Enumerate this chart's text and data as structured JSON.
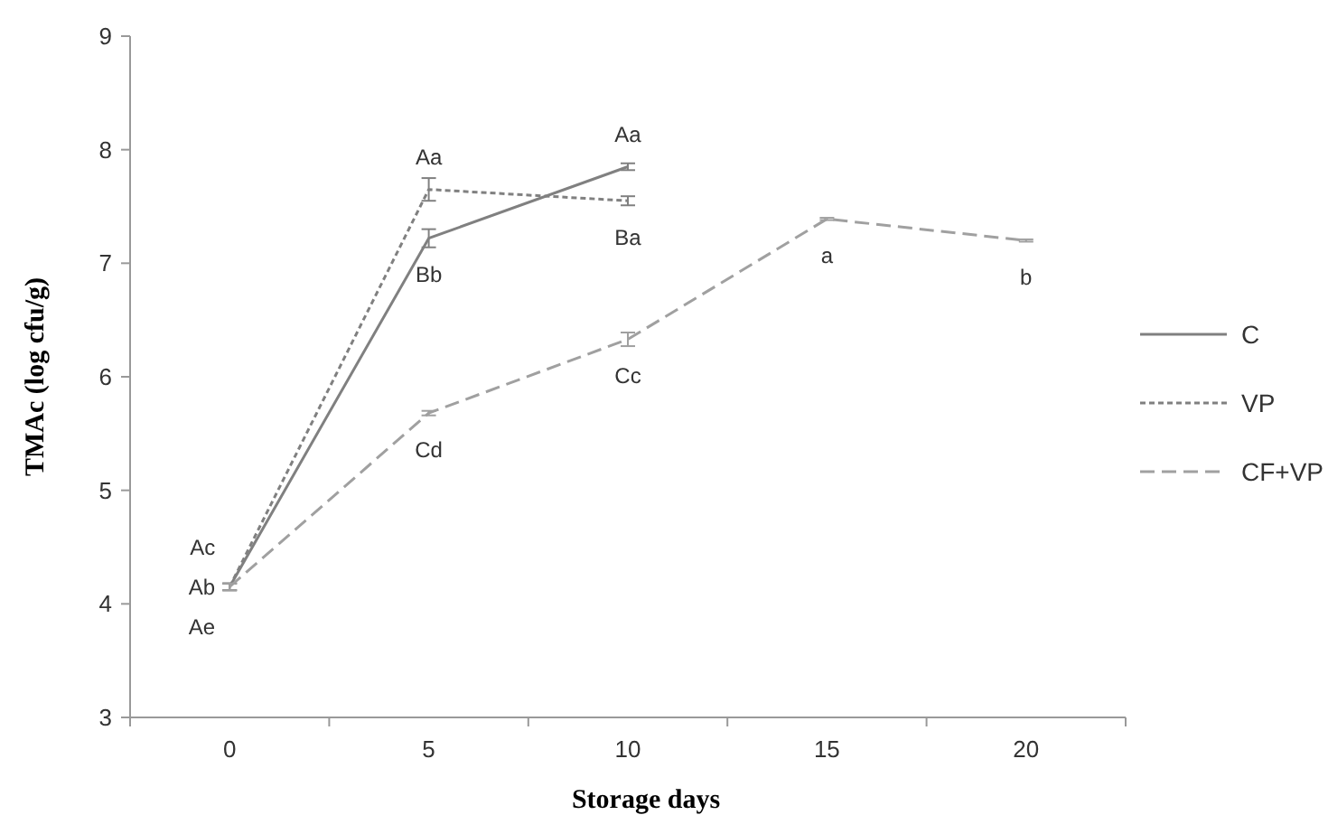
{
  "chart_data": {
    "type": "line",
    "xlabel": "Storage days",
    "ylabel": "TMAc (log cfu/g)",
    "categories": [
      "0",
      "5",
      "10",
      "15",
      "20"
    ],
    "ylim": [
      3,
      9
    ],
    "yticks": [
      3,
      4,
      5,
      6,
      7,
      8,
      9
    ],
    "grid": false,
    "legend": "right",
    "marker": "none",
    "series": [
      {
        "name": "C",
        "color": "#808080",
        "line_style": "solid",
        "values": [
          4.15,
          7.22,
          7.85,
          null,
          null
        ],
        "errors": [
          0.03,
          0.08,
          0.03,
          null,
          null
        ],
        "value_labels": [
          "Ab",
          "Bb",
          "Aa",
          null,
          null
        ]
      },
      {
        "name": "VP",
        "color": "#808080",
        "line_style": "dotted",
        "values": [
          4.15,
          7.65,
          7.55,
          null,
          null
        ],
        "errors": [
          0.03,
          0.1,
          0.04,
          null,
          null
        ],
        "value_labels": [
          "Ac",
          "Aa",
          "Ba",
          null,
          null
        ]
      },
      {
        "name": "CF+VP",
        "color": "#a0a0a0",
        "line_style": "dashed",
        "values": [
          4.15,
          5.68,
          6.33,
          7.39,
          7.2
        ],
        "errors": [
          0.03,
          0.02,
          0.06,
          0.01,
          0.01
        ],
        "value_labels": [
          "Ae",
          "Cd",
          "Cc",
          "a",
          "b"
        ]
      }
    ]
  }
}
